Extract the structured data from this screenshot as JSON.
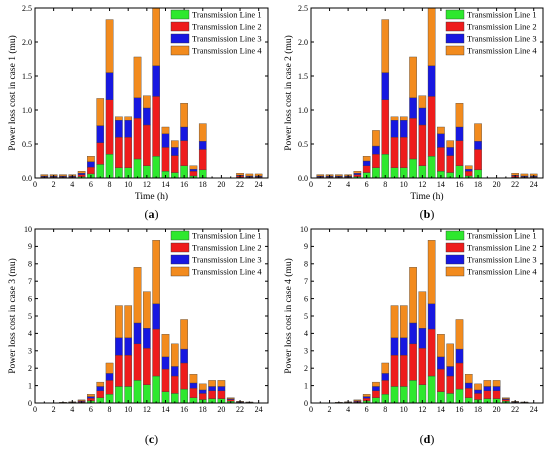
{
  "chart_data": [
    {
      "type": "bar",
      "stacked": true,
      "panel_label": "a",
      "xlabel": "Time (h)",
      "ylabel": "Power loss cost in case 1 (mu)",
      "xlim": [
        0,
        25
      ],
      "ylim": [
        0,
        2.5
      ],
      "xticks": [
        "0",
        "2",
        "4",
        "6",
        "8",
        "10",
        "12",
        "14",
        "16",
        "18",
        "20",
        "22",
        "24"
      ],
      "yticks": [
        "0.0",
        "0.5",
        "1.0",
        "1.5",
        "2.0",
        "2.5"
      ],
      "legend_position": "top-right",
      "hours": [
        1,
        2,
        3,
        4,
        5,
        6,
        7,
        8,
        9,
        10,
        11,
        12,
        13,
        14,
        15,
        16,
        17,
        18,
        19,
        20,
        21,
        22,
        23,
        24
      ],
      "series": [
        {
          "name": "Transmission Line 1",
          "color": "#2ee82e",
          "values": [
            0.01,
            0.01,
            0.01,
            0.01,
            0.02,
            0.06,
            0.2,
            0.35,
            0.15,
            0.15,
            0.28,
            0.18,
            0.32,
            0.1,
            0.08,
            0.18,
            0.03,
            0.12,
            0,
            0,
            0,
            0.01,
            0.01,
            0.01
          ]
        },
        {
          "name": "Transmission Line 2",
          "color": "#ee1c1c",
          "values": [
            0.01,
            0.01,
            0.01,
            0.01,
            0.03,
            0.1,
            0.32,
            0.8,
            0.45,
            0.45,
            0.6,
            0.6,
            0.88,
            0.35,
            0.25,
            0.37,
            0.07,
            0.3,
            0,
            0,
            0,
            0.02,
            0.01,
            0.01
          ]
        },
        {
          "name": "Transmission Line 3",
          "color": "#1717e0",
          "values": [
            0.01,
            0.01,
            0.01,
            0.01,
            0.02,
            0.08,
            0.25,
            0.4,
            0.25,
            0.25,
            0.3,
            0.25,
            0.45,
            0.2,
            0.12,
            0.2,
            0.03,
            0.12,
            0,
            0,
            0,
            0.01,
            0.01,
            0.01
          ]
        },
        {
          "name": "Transmission Line 4",
          "color": "#f28b1e",
          "values": [
            0.02,
            0.02,
            0.02,
            0.02,
            0.03,
            0.08,
            0.4,
            0.78,
            0.05,
            0.05,
            0.6,
            0.18,
            0.85,
            0.1,
            0.1,
            0.35,
            0.05,
            0.26,
            0,
            0,
            0,
            0.03,
            0.03,
            0.03
          ]
        }
      ]
    },
    {
      "type": "bar",
      "stacked": true,
      "panel_label": "b",
      "xlabel": "Time (h)",
      "ylabel": "Power loss cost in case 2 (mu)",
      "xlim": [
        0,
        25
      ],
      "ylim": [
        0,
        2.5
      ],
      "xticks": [
        "0",
        "2",
        "4",
        "6",
        "8",
        "10",
        "12",
        "14",
        "16",
        "18",
        "20",
        "22",
        "24"
      ],
      "yticks": [
        "0.0",
        "0.5",
        "1.0",
        "1.5",
        "2.0",
        "2.5"
      ],
      "legend_position": "top-right",
      "hours": [
        1,
        2,
        3,
        4,
        5,
        6,
        7,
        8,
        9,
        10,
        11,
        12,
        13,
        14,
        15,
        16,
        17,
        18,
        19,
        20,
        21,
        22,
        23,
        24
      ],
      "series": [
        {
          "name": "Transmission Line 1",
          "color": "#2ee82e",
          "values": [
            0.01,
            0.01,
            0.01,
            0.01,
            0.02,
            0.08,
            0.15,
            0.35,
            0.15,
            0.15,
            0.28,
            0.18,
            0.32,
            0.1,
            0.08,
            0.18,
            0.03,
            0.12,
            0,
            0,
            0,
            0.01,
            0.01,
            0.01
          ]
        },
        {
          "name": "Transmission Line 2",
          "color": "#ee1c1c",
          "values": [
            0.01,
            0.01,
            0.01,
            0.01,
            0.03,
            0.1,
            0.2,
            0.8,
            0.45,
            0.45,
            0.6,
            0.6,
            0.88,
            0.35,
            0.25,
            0.37,
            0.07,
            0.3,
            0,
            0,
            0,
            0.02,
            0.01,
            0.01
          ]
        },
        {
          "name": "Transmission Line 3",
          "color": "#1717e0",
          "values": [
            0.01,
            0.01,
            0.01,
            0.01,
            0.02,
            0.07,
            0.12,
            0.4,
            0.25,
            0.25,
            0.3,
            0.25,
            0.45,
            0.2,
            0.12,
            0.2,
            0.03,
            0.12,
            0,
            0,
            0,
            0.01,
            0.01,
            0.01
          ]
        },
        {
          "name": "Transmission Line 4",
          "color": "#f28b1e",
          "values": [
            0.02,
            0.02,
            0.02,
            0.02,
            0.03,
            0.07,
            0.23,
            0.78,
            0.05,
            0.05,
            0.6,
            0.18,
            0.85,
            0.1,
            0.1,
            0.35,
            0.05,
            0.26,
            0,
            0,
            0,
            0.03,
            0.03,
            0.03
          ]
        }
      ]
    },
    {
      "type": "bar",
      "stacked": true,
      "panel_label": "c",
      "xlabel": "",
      "ylabel": "Power loss cost in case 3 (mu)",
      "xlim": [
        0,
        25
      ],
      "ylim": [
        0,
        10
      ],
      "xticks": [
        "0",
        "2",
        "4",
        "6",
        "8",
        "10",
        "12",
        "14",
        "16",
        "18",
        "20",
        "22",
        "24"
      ],
      "yticks": [
        "0",
        "1",
        "2",
        "3",
        "4",
        "5",
        "6",
        "7",
        "8",
        "9",
        "10"
      ],
      "legend_position": "top-right",
      "hours": [
        1,
        2,
        3,
        4,
        5,
        6,
        7,
        8,
        9,
        10,
        11,
        12,
        13,
        14,
        15,
        16,
        17,
        18,
        19,
        20,
        21,
        22,
        23,
        24
      ],
      "series": [
        {
          "name": "Transmission Line 1",
          "color": "#2ee82e",
          "values": [
            0,
            0,
            0.01,
            0.02,
            0.04,
            0.12,
            0.3,
            0.5,
            0.95,
            0.95,
            1.3,
            1.05,
            1.55,
            0.65,
            0.55,
            0.8,
            0.3,
            0.2,
            0.25,
            0.25,
            0.1,
            0.02,
            0.01,
            0
          ]
        },
        {
          "name": "Transmission Line 2",
          "color": "#ee1c1c",
          "values": [
            0,
            0,
            0.01,
            0.02,
            0.05,
            0.15,
            0.4,
            0.8,
            1.8,
            1.8,
            2.1,
            2.1,
            2.7,
            1.3,
            1.0,
            1.5,
            0.55,
            0.35,
            0.45,
            0.45,
            0.1,
            0.03,
            0.02,
            0
          ]
        },
        {
          "name": "Transmission Line 3",
          "color": "#1717e0",
          "values": [
            0,
            0,
            0.01,
            0.01,
            0.04,
            0.1,
            0.25,
            0.4,
            1.0,
            1.0,
            1.2,
            1.15,
            1.45,
            0.7,
            0.55,
            0.8,
            0.3,
            0.2,
            0.25,
            0.25,
            0.05,
            0.02,
            0.01,
            0
          ]
        },
        {
          "name": "Transmission Line 4",
          "color": "#f28b1e",
          "values": [
            0,
            0,
            0.01,
            0.02,
            0.05,
            0.13,
            0.25,
            0.6,
            1.85,
            1.85,
            3.2,
            2.1,
            3.65,
            1.3,
            1.3,
            1.7,
            0.5,
            0.35,
            0.35,
            0.35,
            0.05,
            0.03,
            0.02,
            0
          ]
        }
      ]
    },
    {
      "type": "bar",
      "stacked": true,
      "panel_label": "d",
      "xlabel": "",
      "ylabel": "Power loss cost in case 4 (mu)",
      "xlim": [
        0,
        25
      ],
      "ylim": [
        0,
        10
      ],
      "xticks": [
        "0",
        "2",
        "4",
        "6",
        "8",
        "10",
        "12",
        "14",
        "16",
        "18",
        "20",
        "22",
        "24"
      ],
      "yticks": [
        "0",
        "1",
        "2",
        "3",
        "4",
        "5",
        "6",
        "7",
        "8",
        "9",
        "10"
      ],
      "legend_position": "top-right",
      "hours": [
        1,
        2,
        3,
        4,
        5,
        6,
        7,
        8,
        9,
        10,
        11,
        12,
        13,
        14,
        15,
        16,
        17,
        18,
        19,
        20,
        21,
        22,
        23,
        24
      ],
      "series": [
        {
          "name": "Transmission Line 1",
          "color": "#2ee82e",
          "values": [
            0,
            0,
            0.01,
            0.02,
            0.04,
            0.12,
            0.3,
            0.5,
            0.95,
            0.95,
            1.3,
            1.05,
            1.55,
            0.65,
            0.55,
            0.8,
            0.3,
            0.2,
            0.25,
            0.25,
            0.1,
            0.02,
            0.01,
            0
          ]
        },
        {
          "name": "Transmission Line 2",
          "color": "#ee1c1c",
          "values": [
            0,
            0,
            0.01,
            0.02,
            0.05,
            0.15,
            0.4,
            0.8,
            1.8,
            1.8,
            2.1,
            2.1,
            2.7,
            1.3,
            1.0,
            1.5,
            0.55,
            0.35,
            0.45,
            0.45,
            0.1,
            0.03,
            0.02,
            0
          ]
        },
        {
          "name": "Transmission Line 3",
          "color": "#1717e0",
          "values": [
            0,
            0,
            0.01,
            0.01,
            0.04,
            0.1,
            0.25,
            0.4,
            1.0,
            1.0,
            1.2,
            1.15,
            1.45,
            0.7,
            0.55,
            0.8,
            0.3,
            0.2,
            0.25,
            0.25,
            0.05,
            0.02,
            0.01,
            0
          ]
        },
        {
          "name": "Transmission Line 4",
          "color": "#f28b1e",
          "values": [
            0,
            0,
            0.01,
            0.02,
            0.05,
            0.13,
            0.25,
            0.6,
            1.85,
            1.85,
            3.2,
            2.1,
            3.65,
            1.3,
            1.3,
            1.7,
            0.5,
            0.35,
            0.35,
            0.35,
            0.05,
            0.03,
            0.02,
            0
          ]
        }
      ]
    }
  ]
}
